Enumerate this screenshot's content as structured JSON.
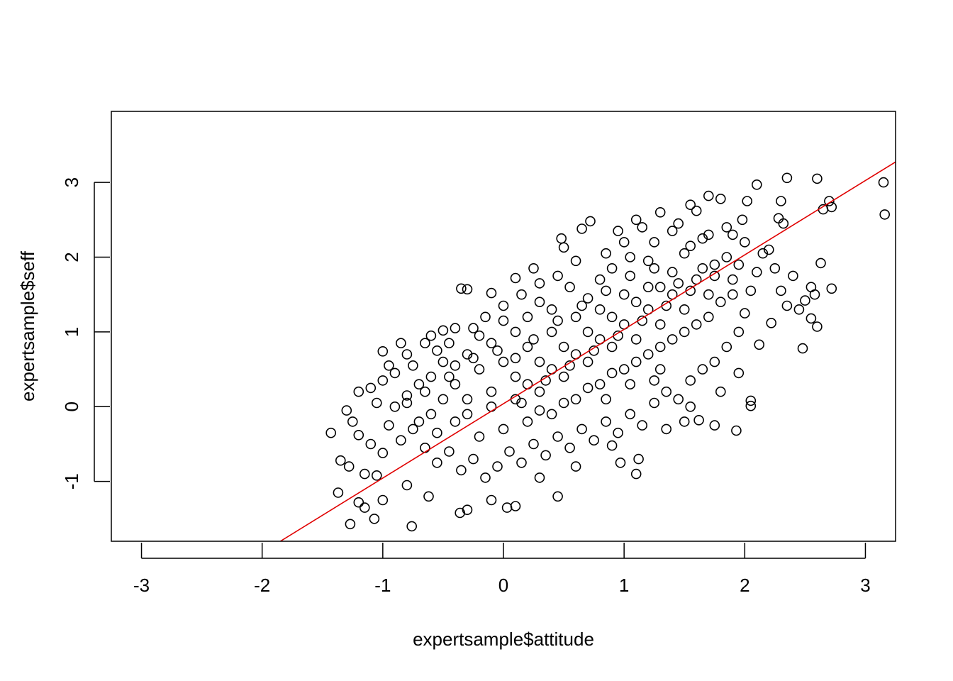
{
  "chart_data": {
    "type": "scatter",
    "title": "",
    "xlabel": "expertsample$attitude",
    "ylabel": "expertsample$seff",
    "xlim": [
      -3.25,
      3.25
    ],
    "ylim": [
      -1.8,
      3.95
    ],
    "x_ticks": [
      -3,
      -2,
      -1,
      0,
      1,
      2,
      3
    ],
    "y_ticks": [
      -1,
      0,
      1,
      2,
      3
    ],
    "x_tick_labels": [
      "-3",
      "-2",
      "-1",
      "0",
      "1",
      "2",
      "3"
    ],
    "y_tick_labels": [
      "-1",
      "0",
      "1",
      "2",
      "3"
    ],
    "grid": false,
    "legend": "none",
    "marker": "open-circle",
    "point_color": "#000000",
    "fit_line": {
      "intercept": 0.04,
      "slope": 0.995,
      "color": "#e00000"
    },
    "series": [
      {
        "points": [
          [
            3.15,
            3.0
          ],
          [
            3.16,
            2.57
          ],
          [
            2.6,
            3.05
          ],
          [
            2.35,
            3.06
          ],
          [
            2.7,
            2.75
          ],
          [
            2.72,
            2.67
          ],
          [
            2.65,
            2.64
          ],
          [
            2.72,
            1.58
          ],
          [
            2.63,
            1.92
          ],
          [
            2.55,
            1.6
          ],
          [
            2.58,
            1.5
          ],
          [
            2.6,
            1.07
          ],
          [
            2.55,
            1.18
          ],
          [
            2.48,
            0.78
          ],
          [
            2.5,
            1.42
          ],
          [
            2.45,
            1.3
          ],
          [
            2.4,
            1.75
          ],
          [
            2.32,
            2.45
          ],
          [
            2.3,
            2.75
          ],
          [
            2.28,
            2.52
          ],
          [
            2.2,
            2.1
          ],
          [
            2.25,
            1.85
          ],
          [
            2.3,
            1.55
          ],
          [
            2.35,
            1.35
          ],
          [
            2.22,
            1.12
          ],
          [
            2.12,
            0.83
          ],
          [
            2.05,
            0.08
          ],
          [
            2.05,
            0.01
          ],
          [
            1.93,
            -0.32
          ],
          [
            2.1,
            2.97
          ],
          [
            2.02,
            2.75
          ],
          [
            1.98,
            2.5
          ],
          [
            1.9,
            2.3
          ],
          [
            1.7,
            2.82
          ],
          [
            1.8,
            2.78
          ],
          [
            1.6,
            2.62
          ],
          [
            1.55,
            2.7
          ],
          [
            1.45,
            2.45
          ],
          [
            1.3,
            2.6
          ],
          [
            1.1,
            2.5
          ],
          [
            0.95,
            2.35
          ],
          [
            0.72,
            2.48
          ],
          [
            0.65,
            2.38
          ],
          [
            0.48,
            2.25
          ],
          [
            0.5,
            2.13
          ],
          [
            0.25,
            1.85
          ],
          [
            0.1,
            1.72
          ],
          [
            -0.3,
            1.57
          ],
          [
            -0.35,
            1.58
          ],
          [
            -0.1,
            1.52
          ],
          [
            -0.4,
            1.05
          ],
          [
            -0.5,
            1.02
          ],
          [
            -0.6,
            0.95
          ],
          [
            -0.85,
            0.85
          ],
          [
            -1.0,
            0.74
          ],
          [
            -1.1,
            0.25
          ],
          [
            -1.2,
            0.2
          ],
          [
            -1.05,
            0.05
          ],
          [
            -1.3,
            -0.05
          ],
          [
            -1.25,
            -0.2
          ],
          [
            -1.43,
            -0.35
          ],
          [
            -1.2,
            -0.38
          ],
          [
            -1.1,
            -0.5
          ],
          [
            -1.0,
            -0.62
          ],
          [
            -1.35,
            -0.72
          ],
          [
            -1.28,
            -0.8
          ],
          [
            -1.15,
            -0.9
          ],
          [
            -1.05,
            -0.92
          ],
          [
            -1.37,
            -1.15
          ],
          [
            -1.2,
            -1.28
          ],
          [
            -1.15,
            -1.35
          ],
          [
            -1.27,
            -1.57
          ],
          [
            -1.0,
            -1.25
          ],
          [
            -1.07,
            -1.5
          ],
          [
            -0.8,
            -1.05
          ],
          [
            -0.76,
            -1.6
          ],
          [
            -0.62,
            -1.2
          ],
          [
            -0.36,
            -1.42
          ],
          [
            -0.3,
            -1.38
          ],
          [
            -0.1,
            -1.25
          ],
          [
            0.03,
            -1.35
          ],
          [
            0.1,
            -1.33
          ],
          [
            0.3,
            -0.95
          ],
          [
            0.45,
            -1.2
          ],
          [
            0.6,
            -0.8
          ],
          [
            0.97,
            -0.75
          ],
          [
            1.1,
            -0.9
          ],
          [
            1.12,
            -0.7
          ],
          [
            0.9,
            -0.52
          ],
          [
            1.35,
            -0.3
          ],
          [
            1.5,
            -0.2
          ],
          [
            1.62,
            -0.18
          ],
          [
            1.75,
            -0.25
          ],
          [
            1.55,
            0.0
          ],
          [
            1.8,
            0.2
          ],
          [
            1.95,
            0.45
          ],
          [
            1.9,
            1.5
          ],
          [
            1.75,
            1.9
          ],
          [
            1.65,
            2.25
          ],
          [
            1.5,
            2.05
          ],
          [
            1.4,
            1.8
          ],
          [
            1.3,
            1.6
          ],
          [
            1.2,
            1.95
          ],
          [
            1.05,
            2.0
          ],
          [
            0.9,
            1.85
          ],
          [
            0.8,
            1.7
          ],
          [
            0.7,
            1.45
          ],
          [
            0.55,
            1.6
          ],
          [
            0.4,
            1.3
          ],
          [
            0.3,
            1.4
          ],
          [
            0.2,
            1.2
          ],
          [
            0.1,
            1.0
          ],
          [
            0.0,
            1.15
          ],
          [
            -0.1,
            0.85
          ],
          [
            -0.2,
            0.95
          ],
          [
            -0.3,
            0.7
          ],
          [
            -0.4,
            0.55
          ],
          [
            -0.5,
            0.6
          ],
          [
            -0.6,
            0.4
          ],
          [
            -0.7,
            0.3
          ],
          [
            -0.8,
            0.15
          ],
          [
            -0.9,
            0.0
          ],
          [
            -0.95,
            -0.25
          ],
          [
            -0.85,
            -0.45
          ],
          [
            -0.75,
            -0.3
          ],
          [
            -0.65,
            -0.55
          ],
          [
            -0.55,
            -0.75
          ],
          [
            -0.45,
            -0.6
          ],
          [
            -0.35,
            -0.85
          ],
          [
            -0.25,
            -0.7
          ],
          [
            -0.15,
            -0.95
          ],
          [
            -0.05,
            -0.8
          ],
          [
            0.05,
            -0.6
          ],
          [
            0.15,
            -0.75
          ],
          [
            0.25,
            -0.5
          ],
          [
            0.35,
            -0.65
          ],
          [
            0.45,
            -0.4
          ],
          [
            0.55,
            -0.55
          ],
          [
            0.65,
            -0.3
          ],
          [
            0.75,
            -0.45
          ],
          [
            0.85,
            -0.2
          ],
          [
            0.95,
            -0.35
          ],
          [
            1.05,
            -0.1
          ],
          [
            1.15,
            -0.25
          ],
          [
            1.25,
            0.05
          ],
          [
            1.35,
            0.2
          ],
          [
            1.45,
            0.1
          ],
          [
            1.55,
            0.35
          ],
          [
            1.65,
            0.5
          ],
          [
            1.75,
            0.6
          ],
          [
            1.85,
            0.8
          ],
          [
            1.95,
            1.0
          ],
          [
            2.0,
            1.25
          ],
          [
            2.05,
            1.55
          ],
          [
            2.1,
            1.8
          ],
          [
            2.15,
            2.05
          ],
          [
            2.0,
            2.2
          ],
          [
            1.85,
            2.4
          ],
          [
            1.7,
            2.3
          ],
          [
            1.55,
            2.15
          ],
          [
            1.4,
            2.35
          ],
          [
            1.25,
            2.2
          ],
          [
            1.15,
            2.4
          ],
          [
            1.0,
            2.2
          ],
          [
            0.85,
            2.05
          ],
          [
            0.6,
            1.95
          ],
          [
            0.45,
            1.75
          ],
          [
            0.3,
            1.65
          ],
          [
            0.15,
            1.5
          ],
          [
            0.0,
            1.35
          ],
          [
            -0.15,
            1.2
          ],
          [
            -0.25,
            1.05
          ],
          [
            -0.45,
            0.85
          ],
          [
            -0.55,
            0.75
          ],
          [
            -0.75,
            0.55
          ],
          [
            -0.9,
            0.45
          ],
          [
            -1.0,
            0.35
          ],
          [
            -0.95,
            0.55
          ],
          [
            -0.8,
            0.7
          ],
          [
            -0.65,
            0.85
          ],
          [
            0.2,
            0.3
          ],
          [
            0.4,
            0.5
          ],
          [
            0.6,
            0.7
          ],
          [
            0.8,
            0.9
          ],
          [
            1.0,
            1.1
          ],
          [
            1.2,
            1.3
          ],
          [
            0.3,
            0.6
          ],
          [
            0.5,
            0.8
          ],
          [
            0.7,
            1.0
          ],
          [
            0.9,
            1.2
          ],
          [
            1.1,
            1.4
          ],
          [
            1.3,
            1.1
          ],
          [
            1.5,
            1.3
          ],
          [
            1.7,
            1.5
          ],
          [
            1.6,
            1.1
          ],
          [
            1.4,
            0.9
          ],
          [
            1.2,
            0.7
          ],
          [
            1.0,
            0.5
          ],
          [
            0.8,
            0.3
          ],
          [
            0.6,
            0.1
          ],
          [
            0.4,
            -0.1
          ],
          [
            0.2,
            -0.2
          ],
          [
            0.0,
            -0.3
          ],
          [
            -0.2,
            -0.4
          ],
          [
            -0.4,
            -0.2
          ],
          [
            -0.6,
            -0.1
          ],
          [
            -0.3,
            0.1
          ],
          [
            -0.1,
            0.2
          ],
          [
            0.1,
            0.4
          ],
          [
            0.3,
            0.2
          ],
          [
            0.5,
            0.4
          ],
          [
            0.7,
            0.6
          ],
          [
            0.9,
            0.8
          ],
          [
            1.1,
            0.9
          ],
          [
            1.3,
            0.8
          ],
          [
            1.5,
            1.0
          ],
          [
            1.7,
            1.2
          ],
          [
            1.8,
            1.4
          ],
          [
            1.9,
            1.7
          ],
          [
            1.6,
            1.7
          ],
          [
            1.4,
            1.5
          ],
          [
            1.2,
            1.6
          ],
          [
            1.0,
            1.5
          ],
          [
            0.8,
            1.3
          ],
          [
            0.6,
            1.2
          ],
          [
            0.4,
            1.0
          ],
          [
            0.2,
            0.8
          ],
          [
            0.0,
            0.6
          ],
          [
            -0.2,
            0.5
          ],
          [
            -0.4,
            0.3
          ],
          [
            -0.5,
            0.1
          ],
          [
            -0.3,
            -0.1
          ],
          [
            -0.1,
            0.0
          ],
          [
            0.1,
            0.1
          ],
          [
            0.3,
            -0.05
          ],
          [
            0.5,
            0.05
          ],
          [
            0.7,
            0.25
          ],
          [
            0.9,
            0.45
          ],
          [
            1.1,
            0.6
          ],
          [
            1.3,
            0.5
          ],
          [
            0.1,
            0.65
          ],
          [
            0.25,
            0.9
          ],
          [
            0.45,
            1.15
          ],
          [
            0.65,
            1.35
          ],
          [
            0.85,
            1.55
          ],
          [
            1.05,
            1.75
          ],
          [
            1.25,
            1.85
          ],
          [
            1.45,
            1.65
          ],
          [
            1.65,
            1.85
          ],
          [
            1.85,
            2.0
          ],
          [
            -0.7,
            -0.2
          ],
          [
            -0.55,
            -0.35
          ],
          [
            -0.8,
            0.05
          ],
          [
            -0.65,
            0.2
          ],
          [
            -0.45,
            0.4
          ],
          [
            -0.25,
            0.65
          ],
          [
            -0.05,
            0.75
          ],
          [
            0.15,
            0.05
          ],
          [
            0.35,
            0.35
          ],
          [
            0.55,
            0.55
          ],
          [
            0.75,
            0.75
          ],
          [
            0.95,
            0.95
          ],
          [
            1.15,
            1.15
          ],
          [
            1.35,
            1.35
          ],
          [
            1.55,
            1.55
          ],
          [
            1.75,
            1.75
          ],
          [
            1.95,
            1.9
          ],
          [
            1.05,
            0.3
          ],
          [
            1.25,
            0.35
          ],
          [
            0.85,
            0.1
          ]
        ]
      }
    ]
  }
}
